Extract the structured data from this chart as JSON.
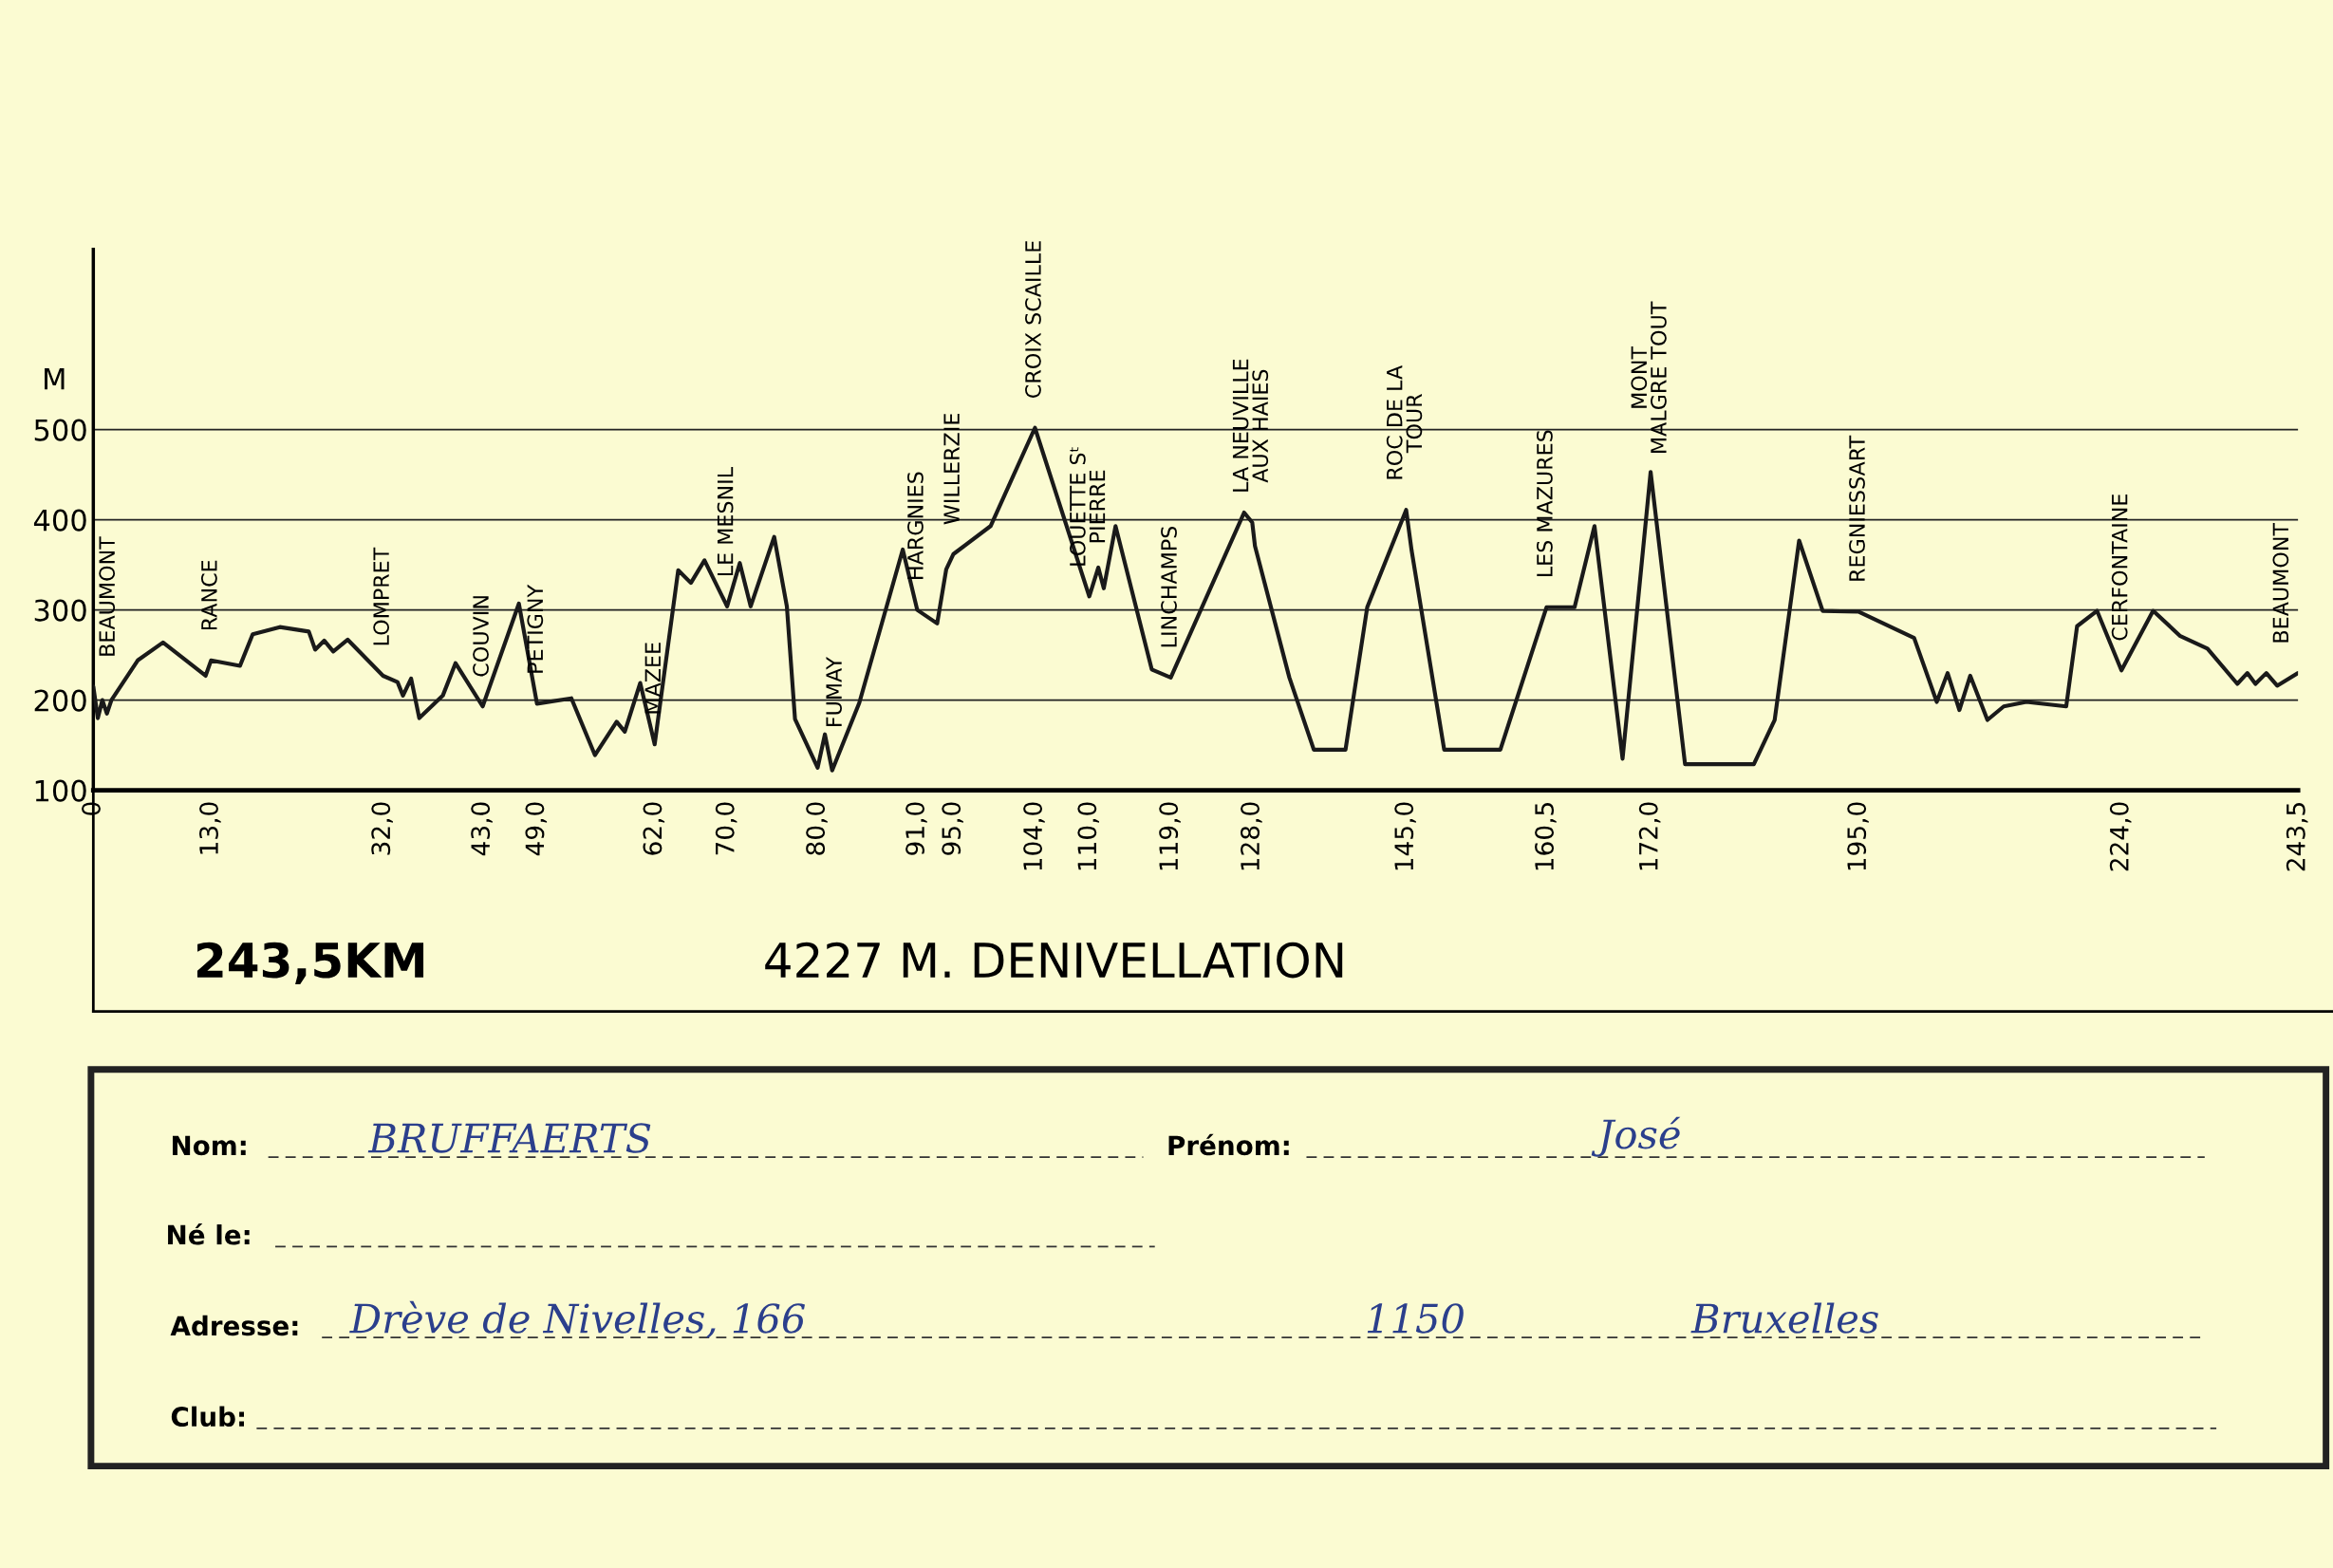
{
  "chart_data": {
    "type": "line",
    "ylabel": "M",
    "xlim": [
      0,
      243.5
    ],
    "ylim": [
      100,
      700
    ],
    "xticks": [
      0,
      {
        "value": 13,
        "label": "13,0"
      },
      {
        "value": 32,
        "label": "32,0"
      },
      {
        "value": 43,
        "label": "43,0"
      },
      {
        "value": 49,
        "label": "49,0"
      },
      {
        "value": 62,
        "label": "62,0"
      },
      {
        "value": 70,
        "label": "70,0"
      },
      {
        "value": 80,
        "label": "80,0"
      },
      {
        "value": 91,
        "label": "91,0"
      },
      {
        "value": 95,
        "label": "95,0"
      },
      {
        "value": 104,
        "label": "104,0"
      },
      {
        "value": 110,
        "label": "110,0"
      },
      {
        "value": 119,
        "label": "119,0"
      },
      {
        "value": 128,
        "label": "128,0"
      },
      {
        "value": 145,
        "label": "145,0"
      },
      {
        "value": 160.5,
        "label": "160,5"
      },
      {
        "value": 172,
        "label": "172,0"
      },
      {
        "value": 195,
        "label": "195,0"
      },
      {
        "value": 224,
        "label": "224,0"
      },
      {
        "value": 243.5,
        "label": "243,5"
      }
    ],
    "yticks": [
      100,
      200,
      300,
      400,
      500
    ],
    "grid": "y",
    "marker": "none",
    "line_style": "solid",
    "series": [
      {
        "color": "#1a1a1a",
        "x": [
          0,
          0.5,
          1,
          1.5,
          2,
          4.9,
          7.7,
          12.4,
          13,
          16.2,
          17.6,
          20.6,
          23.8,
          24.5,
          25.5,
          26.5,
          28.1,
          32,
          33.6,
          34.2,
          35.1,
          36,
          38.6,
          40,
          43,
          47,
          49,
          52.8,
          55.4,
          57.8,
          58.7,
          60.4,
          62,
          64.6,
          66,
          67.5,
          70,
          71.4,
          72.6,
          75.2,
          76.6,
          77.5,
          80,
          80.8,
          81.6,
          84.6,
          89.4,
          91,
          93.2,
          94.2,
          95,
          99.1,
          104,
          110,
          111,
          111.6,
          112.9,
          116.9,
          119,
          127.1,
          128,
          128.3,
          132.1,
          134.8,
          138.3,
          140.7,
          145,
          145.6,
          149.2,
          155.4,
          160.5,
          163.6,
          165.8,
          168.9,
          172,
          175.8,
          183.4,
          185.7,
          188.4,
          191,
          195,
          201.1,
          203.6,
          204.8,
          206.1,
          207.3,
          209.2,
          211,
          213.5,
          217.9,
          219.1,
          221.3,
          224,
          227.5,
          230.5,
          233.5,
          236.8,
          237.9,
          238.8,
          240,
          241.2,
          243.5
        ],
        "values": [
          215,
          180,
          200,
          185,
          200,
          244,
          264,
          227,
          244,
          238,
          273,
          281,
          276,
          256,
          266,
          254,
          267,
          227,
          220,
          205,
          224,
          180,
          205,
          241,
          193,
          307,
          196,
          202,
          139,
          176,
          165,
          219,
          151,
          344,
          330,
          355,
          304,
          352,
          304,
          381,
          304,
          179,
          125,
          162,
          122,
          197,
          367,
          300,
          285,
          345,
          362,
          393,
          502,
          315,
          347,
          324,
          393,
          234,
          225,
          408,
          397,
          371,
          225,
          145,
          145,
          303,
          411,
          366,
          145,
          145,
          303,
          303,
          393,
          135,
          453,
          129,
          129,
          178,
          377,
          299,
          298,
          269,
          198,
          230,
          189,
          227,
          178,
          193,
          198,
          193,
          282,
          299,
          233,
          299,
          271,
          257,
          218,
          230,
          218,
          230,
          216,
          230
        ]
      }
    ],
    "annotations": [
      {
        "text": "BEAUMONT",
        "x": 0,
        "y": 215
      },
      {
        "text": "RANCE",
        "x": 13,
        "y": 244
      },
      {
        "text": "LOMPRET",
        "x": 32,
        "y": 227
      },
      {
        "text": "COUVIN",
        "x": 43,
        "y": 193
      },
      {
        "text": "PETIGNY",
        "x": 49,
        "y": 196
      },
      {
        "text": "MAZEE",
        "x": 62,
        "y": 151
      },
      {
        "text": "LE MESNIL",
        "x": 70,
        "y": 304
      },
      {
        "text": "FUMAY",
        "x": 80,
        "y": 125
      },
      {
        "text": "HARGNIES",
        "x": 91,
        "y": 300
      },
      {
        "text": "WILLERZIE",
        "x": 95,
        "y": 362
      },
      {
        "text": "CROIX SCAILLE",
        "x": 104,
        "y": 502
      },
      {
        "text": "LOUETTE Sᵗ\nPIERRE",
        "x": 110,
        "y": 315
      },
      {
        "text": "LINCHAMPS",
        "x": 119,
        "y": 225
      },
      {
        "text": "LA NEUVILLE\nAUX HAIES",
        "x": 128,
        "y": 397
      },
      {
        "text": "ROC DE LA\nTOUR",
        "x": 145,
        "y": 411
      },
      {
        "text": "LES MAZURES",
        "x": 160.5,
        "y": 303
      },
      {
        "text": "MONT\nMALGRE TOUT",
        "x": 172,
        "y": 440
      },
      {
        "text": "REGNIESSART",
        "x": 195,
        "y": 298
      },
      {
        "text": "CERFONTAINE",
        "x": 224,
        "y": 233
      },
      {
        "text": "BEAUMONT",
        "x": 243.5,
        "y": 230
      },
      "243,5KM",
      "4227 M. DENIVELLATION",
      "Nom:",
      "BRUFFAERTS",
      "Prénom:",
      "José",
      "Né le:",
      "Adresse:",
      "Drève de Nivelles, 166",
      "1150",
      "Bruxelles",
      "Club:"
    ]
  }
}
